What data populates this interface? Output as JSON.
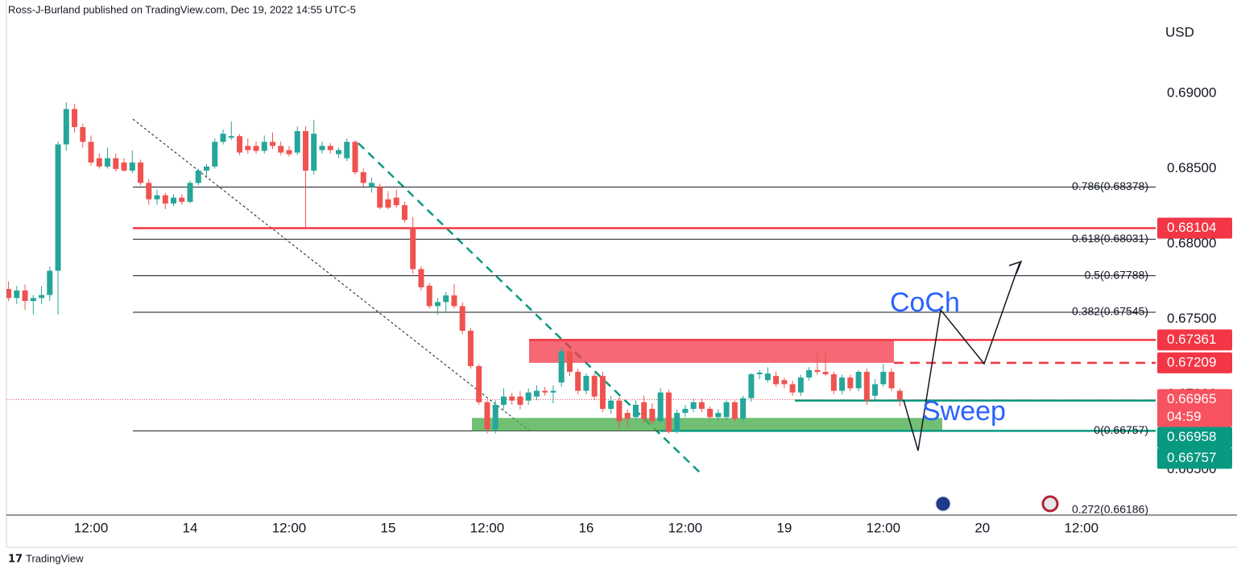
{
  "header": {
    "text": "Ross-J-Burland published on TradingView.com, Dec 19, 2022 14:55 UTC-5"
  },
  "footer": {
    "text": "TradingView"
  },
  "chart_data": {
    "type": "candlestick",
    "currency": "USD",
    "up_color": "#26a69a",
    "down_color": "#ef5350",
    "open": [
      0.677,
      0.6764,
      0.6769,
      0.6762,
      0.6764,
      0.6766,
      0.67821,
      0.68661,
      0.68896,
      0.68776,
      0.68678,
      0.68569,
      0.68514,
      0.68569,
      0.68541,
      0.68487,
      0.68541,
      0.68405,
      0.68296,
      0.68323,
      0.68268,
      0.68307,
      0.68279,
      0.68405,
      0.68487,
      0.68514,
      0.68678,
      0.68705,
      0.68716,
      0.68651,
      0.68651,
      0.68618,
      0.68678,
      0.68651,
      0.68623,
      0.68607,
      0.68749,
      0.68487,
      0.68623,
      0.68651,
      0.68596,
      0.68569,
      0.68678,
      0.68476,
      0.68378,
      0.68378,
      0.68296,
      0.68307,
      0.68257,
      0.68105,
      0.67832,
      0.67722,
      0.67586,
      0.67613,
      0.67657,
      0.67586,
      0.67422,
      0.67187,
      0.66947,
      0.66767,
      0.6693,
      0.66985,
      0.66985,
      0.66958,
      0.66985,
      0.67023,
      0.67012,
      0.67078,
      0.67286,
      0.67149,
      0.67023,
      0.67122,
      0.67122,
      0.66903,
      0.66958,
      0.66876,
      0.66848,
      0.66947,
      0.66903,
      0.66821,
      0.67012,
      0.6675,
      0.66876,
      0.66903,
      0.66947,
      0.66903,
      0.66848,
      0.66848,
      0.66947,
      0.66837,
      0.66974,
      0.67133,
      0.67094,
      0.67122,
      0.67094,
      0.67067,
      0.67012,
      0.67111,
      0.6716,
      0.67149,
      0.67133,
      0.67023,
      0.67111,
      0.6704,
      0.67149,
      0.6699,
      0.67067,
      0.67149,
      0.67023
    ],
    "high": [
      0.6775,
      0.6772,
      0.6773,
      0.6766,
      0.6772,
      0.6785,
      0.6868,
      0.6894,
      0.6893,
      0.688,
      0.6872,
      0.686,
      0.6864,
      0.686,
      0.6857,
      0.6862,
      0.6856,
      0.6843,
      0.6836,
      0.6834,
      0.6833,
      0.6833,
      0.6842,
      0.685,
      0.6853,
      0.687,
      0.6876,
      0.68814,
      0.6873,
      0.687,
      0.6868,
      0.6872,
      0.6874,
      0.6868,
      0.6865,
      0.6878,
      0.6878,
      0.68825,
      0.6868,
      0.6867,
      0.6864,
      0.687,
      0.6869,
      0.685,
      0.6844,
      0.684,
      0.6835,
      0.6836,
      0.6828,
      0.6818,
      0.6785,
      0.6774,
      0.6764,
      0.6768,
      0.67733,
      0.6761,
      0.6744,
      0.672,
      0.6696,
      0.6696,
      0.6704,
      0.6701,
      0.6702,
      0.6704,
      0.6706,
      0.6705,
      0.6706,
      0.67313,
      0.673,
      0.6717,
      0.6714,
      0.6714,
      0.6715,
      0.6699,
      0.6698,
      0.669,
      0.6696,
      0.6699,
      0.6694,
      0.6704,
      0.6703,
      0.669,
      0.6693,
      0.6697,
      0.6697,
      0.6692,
      0.669,
      0.6696,
      0.6696,
      0.6699,
      0.6714,
      0.6716,
      0.6718,
      0.6715,
      0.6711,
      0.6709,
      0.6713,
      0.6718,
      0.67286,
      0.6728,
      0.6715,
      0.6713,
      0.6713,
      0.6716,
      0.6717,
      0.671,
      0.672,
      0.6717,
      0.6704
    ],
    "low": [
      0.6762,
      0.676,
      0.6756,
      0.6753,
      0.676,
      0.6762,
      0.6753,
      0.6862,
      0.6874,
      0.6864,
      0.6852,
      0.685,
      0.685,
      0.6848,
      0.6848,
      0.6847,
      0.6839,
      0.6826,
      0.6826,
      0.6823,
      0.6825,
      0.6826,
      0.6827,
      0.6839,
      0.6845,
      0.685,
      0.6866,
      0.6869,
      0.6859,
      0.686,
      0.686,
      0.686,
      0.6863,
      0.6859,
      0.6858,
      0.6859,
      0.68105,
      0.6846,
      0.686,
      0.686,
      0.6857,
      0.6855,
      0.6846,
      0.6838,
      0.6834,
      0.6823,
      0.6823,
      0.6824,
      0.6814,
      0.678,
      0.6769,
      0.6757,
      0.6753,
      0.6754,
      0.6757,
      0.674,
      0.6717,
      0.6693,
      0.6674,
      0.6674,
      0.669,
      0.6693,
      0.669,
      0.6693,
      0.6696,
      0.6699,
      0.6694,
      0.6705,
      0.6712,
      0.67,
      0.67,
      0.6696,
      0.6688,
      0.6687,
      0.6677,
      0.6678,
      0.6683,
      0.6681,
      0.668,
      0.6681,
      0.6674,
      0.6674,
      0.6685,
      0.6688,
      0.6688,
      0.6683,
      0.6683,
      0.6683,
      0.6682,
      0.6682,
      0.6695,
      0.671,
      0.6708,
      0.6705,
      0.6704,
      0.6699,
      0.6699,
      0.6709,
      0.6713,
      0.6712,
      0.67,
      0.67,
      0.6702,
      0.6702,
      0.6693,
      0.6695,
      0.6705,
      0.6702,
      0.6692
    ],
    "close": [
      0.6764,
      0.6769,
      0.6762,
      0.6764,
      0.6766,
      0.67821,
      0.68661,
      0.68896,
      0.68776,
      0.68678,
      0.68541,
      0.68514,
      0.68569,
      0.68498,
      0.68487,
      0.68541,
      0.68405,
      0.68296,
      0.68323,
      0.68268,
      0.68307,
      0.68279,
      0.68405,
      0.68487,
      0.68514,
      0.68678,
      0.68732,
      0.68716,
      0.68607,
      0.68623,
      0.68618,
      0.68678,
      0.68651,
      0.68607,
      0.68596,
      0.68749,
      0.68487,
      0.68732,
      0.68651,
      0.68623,
      0.68623,
      0.68678,
      0.68476,
      0.68405,
      0.68405,
      0.68241,
      0.68241,
      0.68257,
      0.68159,
      0.67832,
      0.67711,
      0.67586,
      0.67613,
      0.67657,
      0.67586,
      0.67422,
      0.67187,
      0.66947,
      0.66767,
      0.6693,
      0.66985,
      0.66958,
      0.6693,
      0.67012,
      0.67023,
      0.67012,
      0.67023,
      0.67286,
      0.67149,
      0.67023,
      0.67122,
      0.66985,
      0.66903,
      0.66958,
      0.66821,
      0.66837,
      0.6693,
      0.66837,
      0.66821,
      0.67012,
      0.6675,
      0.66876,
      0.66903,
      0.66947,
      0.66903,
      0.66848,
      0.66876,
      0.66947,
      0.66837,
      0.66974,
      0.67133,
      0.67144,
      0.67138,
      0.67067,
      0.67067,
      0.67012,
      0.67111,
      0.6716,
      0.67149,
      0.67133,
      0.67023,
      0.67111,
      0.6704,
      0.67149,
      0.66958,
      0.67067,
      0.67149,
      0.6704,
      0.66965
    ],
    "xlim": [
      -0.25,
      139
    ],
    "xticks": [
      {
        "value": 10,
        "label": "12:00"
      },
      {
        "value": 22,
        "label": "14"
      },
      {
        "value": 34,
        "label": "12:00"
      },
      {
        "value": 46,
        "label": "15"
      },
      {
        "value": 58,
        "label": "12:00"
      },
      {
        "value": 70,
        "label": "16"
      },
      {
        "value": 82,
        "label": "12:00"
      },
      {
        "value": 94,
        "label": "19"
      },
      {
        "value": 106,
        "label": "12:00"
      },
      {
        "value": 118,
        "label": "20"
      },
      {
        "value": 130,
        "label": "12:00"
      }
    ],
    "ylim": [
      0.66197,
      0.69621
    ],
    "yticks": [
      {
        "value": 0.69,
        "label": "0.69000"
      },
      {
        "value": 0.685,
        "label": "0.68500"
      },
      {
        "value": 0.68,
        "label": "0.68000"
      },
      {
        "value": 0.675,
        "label": "0.67500"
      },
      {
        "value": 0.67,
        "label": "0.67000"
      },
      {
        "value": 0.665,
        "label": "0.66500"
      }
    ],
    "fib_levels": [
      {
        "value": 0.68378,
        "label": "0.786(0.68378)"
      },
      {
        "value": 0.68031,
        "label": "0.618(0.68031)"
      },
      {
        "value": 0.67788,
        "label": "0.5(0.67788)"
      },
      {
        "value": 0.67545,
        "label": "0.382(0.67545)"
      },
      {
        "value": 0.66757,
        "label": "0(0.66757)"
      },
      {
        "value": 0.66186,
        "label": "0.272(0.66186)"
      }
    ],
    "price_tags": [
      {
        "value": 0.68104,
        "color": "#f23645"
      },
      {
        "value": 0.67361,
        "color": "#f23645"
      },
      {
        "value": 0.67209,
        "color": "#f23645"
      },
      {
        "value": 0.66965,
        "color": "#f7525f",
        "countdown": "04:59"
      },
      {
        "value": 0.66958,
        "color": "#089981"
      },
      {
        "value": 0.66757,
        "color": "#089981"
      }
    ],
    "annotations": [
      "CoCh",
      "Sweep"
    ]
  }
}
